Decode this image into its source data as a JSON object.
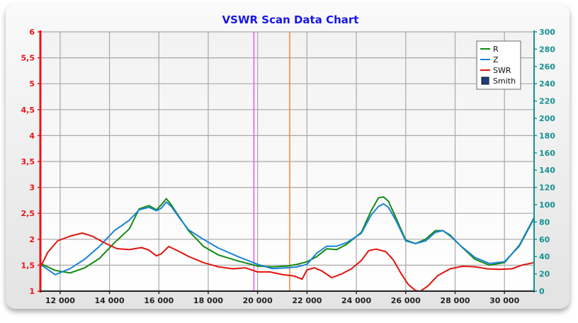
{
  "chart_data": {
    "type": "line",
    "title": "VSWR Scan Data Chart",
    "x": {
      "range": [
        11200,
        31200
      ],
      "ticks": [
        12000,
        14000,
        16000,
        18000,
        20000,
        22000,
        24000,
        26000,
        28000,
        30000
      ],
      "tick_labels": [
        "12 000",
        "14 000",
        "16 000",
        "18 000",
        "20 000",
        "22 000",
        "24 000",
        "26 000",
        "28 000",
        "30 000"
      ]
    },
    "y_left": {
      "range": [
        1,
        6
      ],
      "ticks": [
        1,
        1.5,
        2,
        2.5,
        3,
        3.5,
        4,
        4.5,
        5,
        5.5,
        6
      ],
      "tick_labels": [
        "1",
        "1,5",
        "2",
        "2,5",
        "3",
        "3,5",
        "4",
        "4,5",
        "5",
        "5,5",
        "6"
      ],
      "color": "#e8141b"
    },
    "y_right": {
      "range": [
        0,
        300
      ],
      "ticks": [
        0,
        20,
        40,
        60,
        80,
        100,
        120,
        140,
        160,
        180,
        200,
        220,
        240,
        260,
        280,
        300
      ],
      "tick_labels": [
        "0",
        "20",
        "40",
        "60",
        "80",
        "100",
        "120",
        "140",
        "160",
        "180",
        "200",
        "220",
        "240",
        "260",
        "280",
        "300"
      ],
      "color": "#179191"
    },
    "grid": true,
    "legend_position": "top-right",
    "markers": [
      {
        "x": 19850,
        "color": "#e65ef0"
      },
      {
        "x": 21300,
        "color": "#f58a3c"
      }
    ],
    "series": [
      {
        "name": "R",
        "axis": "right",
        "color": "#118a11",
        "x": [
          11200,
          11800,
          12400,
          13000,
          13600,
          14200,
          14800,
          15200,
          15600,
          15900,
          16100,
          16300,
          16500,
          16800,
          17200,
          17800,
          18400,
          19200,
          20000,
          20600,
          21200,
          21600,
          22000,
          22400,
          22800,
          23200,
          23600,
          24200,
          24600,
          24900,
          25100,
          25300,
          25600,
          26000,
          26400,
          26800,
          27200,
          27500,
          27800,
          28200,
          28800,
          29400,
          30000,
          30600,
          31200
        ],
        "y": [
          32,
          24,
          21,
          27,
          38,
          56,
          72,
          95,
          99,
          94,
          100,
          107,
          100,
          87,
          70,
          52,
          42,
          35,
          29,
          28,
          29,
          31,
          34,
          40,
          49,
          48,
          54,
          68,
          93,
          108,
          109,
          104,
          85,
          59,
          55,
          60,
          70,
          70,
          64,
          53,
          37,
          30,
          33,
          53,
          85
        ]
      },
      {
        "name": "Z",
        "axis": "right",
        "color": "#1a84d6",
        "x": [
          11200,
          11800,
          12400,
          13000,
          13600,
          14200,
          14800,
          15200,
          15600,
          15900,
          16100,
          16300,
          16500,
          16800,
          17200,
          17800,
          18400,
          19200,
          20000,
          20600,
          21200,
          21600,
          22000,
          22400,
          22800,
          23200,
          23600,
          24200,
          24600,
          24900,
          25100,
          25300,
          25600,
          26000,
          26400,
          26800,
          27200,
          27500,
          27800,
          28200,
          28800,
          29400,
          30000,
          30600,
          31200
        ],
        "y": [
          31,
          19,
          26,
          37,
          52,
          70,
          82,
          94,
          97,
          93,
          96,
          103,
          98,
          86,
          71,
          60,
          50,
          40,
          31,
          26,
          27,
          28,
          31,
          44,
          52,
          52,
          56,
          67,
          88,
          98,
          101,
          97,
          82,
          58,
          55,
          58,
          68,
          70,
          65,
          53,
          39,
          32,
          34,
          52,
          84
        ]
      },
      {
        "name": "SWR",
        "axis": "left",
        "color": "#e0140f",
        "x": [
          11200,
          11500,
          11900,
          12400,
          12900,
          13300,
          13800,
          14300,
          14800,
          15300,
          15600,
          15900,
          16100,
          16400,
          16800,
          17200,
          17800,
          18400,
          19000,
          19500,
          20000,
          20500,
          21000,
          21500,
          21800,
          22000,
          22300,
          22600,
          23000,
          23400,
          23800,
          24200,
          24500,
          24800,
          25200,
          25500,
          25800,
          26100,
          26400,
          26600,
          26900,
          27300,
          27800,
          28300,
          28800,
          29300,
          29800,
          30300,
          30700,
          31200
        ],
        "y": [
          1.46,
          1.75,
          1.97,
          2.06,
          2.12,
          2.06,
          1.93,
          1.82,
          1.8,
          1.84,
          1.79,
          1.68,
          1.72,
          1.86,
          1.77,
          1.67,
          1.55,
          1.47,
          1.43,
          1.45,
          1.37,
          1.37,
          1.32,
          1.29,
          1.23,
          1.41,
          1.45,
          1.39,
          1.26,
          1.33,
          1.43,
          1.59,
          1.78,
          1.81,
          1.76,
          1.6,
          1.35,
          1.13,
          1.01,
          1.0,
          1.1,
          1.3,
          1.43,
          1.48,
          1.47,
          1.43,
          1.42,
          1.43,
          1.5,
          1.55
        ]
      },
      {
        "name": "Smith",
        "axis": "right",
        "color": "#1c3f7a",
        "x": [],
        "y": []
      }
    ]
  }
}
